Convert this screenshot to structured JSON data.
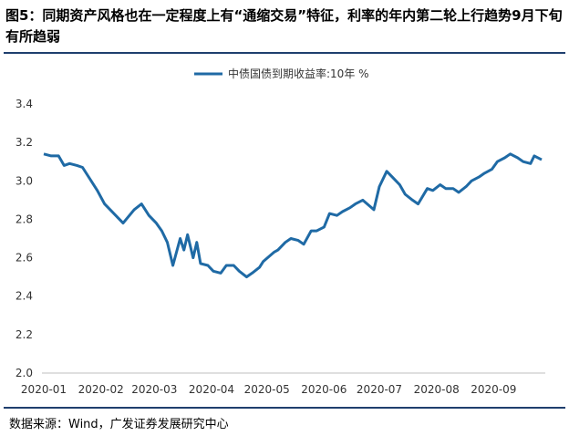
{
  "title": "图5：同期资产风格也在一定程度上有“通缩交易”特征，利率的年内第二轮上行趋势9月下旬有所趋弱",
  "source": "数据来源：Wind，广发证券发展研究中心",
  "colors": {
    "line": "#1f6aa5",
    "rule": "#1f3f6e",
    "axis": "#bfbfbf"
  },
  "chart_data": {
    "type": "line",
    "title": "图5：同期资产风格也在一定程度上有“通缩交易”特征，利率的年内第二轮上行趋势9月下旬有所趋弱",
    "legend_position": "top-center",
    "grid": false,
    "ylim": [
      2.0,
      3.4
    ],
    "yticks": [
      "3.4",
      "3.2",
      "3.0",
      "2.8",
      "2.6",
      "2.4",
      "2.2",
      "2.0"
    ],
    "xticks": [
      "2020-01",
      "2020-02",
      "2020-03",
      "2020-04",
      "2020-05",
      "2020-06",
      "2020-07",
      "2020-08",
      "2020-09"
    ],
    "series": [
      {
        "name": "中债国债到期收益率:10年 %",
        "x": [
          "2020-01-02",
          "2020-01-06",
          "2020-01-10",
          "2020-01-13",
          "2020-01-16",
          "2020-01-20",
          "2020-01-23",
          "2020-01-31",
          "2020-02-04",
          "2020-02-10",
          "2020-02-14",
          "2020-02-20",
          "2020-02-24",
          "2020-02-28",
          "2020-03-03",
          "2020-03-06",
          "2020-03-09",
          "2020-03-12",
          "2020-03-16",
          "2020-03-18",
          "2020-03-20",
          "2020-03-23",
          "2020-03-25",
          "2020-03-27",
          "2020-03-31",
          "2020-04-03",
          "2020-04-07",
          "2020-04-10",
          "2020-04-14",
          "2020-04-17",
          "2020-04-21",
          "2020-04-24",
          "2020-04-28",
          "2020-04-30",
          "2020-05-06",
          "2020-05-08",
          "2020-05-12",
          "2020-05-15",
          "2020-05-19",
          "2020-05-22",
          "2020-05-26",
          "2020-05-29",
          "2020-06-02",
          "2020-06-05",
          "2020-06-09",
          "2020-06-12",
          "2020-06-16",
          "2020-06-19",
          "2020-06-23",
          "2020-06-29",
          "2020-07-02",
          "2020-07-06",
          "2020-07-09",
          "2020-07-13",
          "2020-07-16",
          "2020-07-20",
          "2020-07-23",
          "2020-07-28",
          "2020-07-31",
          "2020-08-04",
          "2020-08-07",
          "2020-08-11",
          "2020-08-14",
          "2020-08-18",
          "2020-08-21",
          "2020-08-25",
          "2020-08-28",
          "2020-09-01",
          "2020-09-04",
          "2020-09-08",
          "2020-09-11",
          "2020-09-15",
          "2020-09-18",
          "2020-09-22",
          "2020-09-24",
          "2020-09-28"
        ],
        "values": [
          3.14,
          3.13,
          3.13,
          3.08,
          3.09,
          3.08,
          3.07,
          2.95,
          2.88,
          2.82,
          2.78,
          2.85,
          2.88,
          2.82,
          2.78,
          2.74,
          2.68,
          2.56,
          2.7,
          2.64,
          2.72,
          2.6,
          2.68,
          2.57,
          2.56,
          2.53,
          2.52,
          2.56,
          2.56,
          2.53,
          2.5,
          2.52,
          2.55,
          2.58,
          2.63,
          2.64,
          2.68,
          2.7,
          2.69,
          2.67,
          2.74,
          2.74,
          2.76,
          2.83,
          2.82,
          2.84,
          2.86,
          2.88,
          2.9,
          2.85,
          2.97,
          3.05,
          3.02,
          2.98,
          2.93,
          2.9,
          2.88,
          2.96,
          2.95,
          2.98,
          2.96,
          2.96,
          2.94,
          2.97,
          3.0,
          3.02,
          3.04,
          3.06,
          3.1,
          3.12,
          3.14,
          3.12,
          3.1,
          3.09,
          3.13,
          3.11
        ]
      }
    ]
  }
}
